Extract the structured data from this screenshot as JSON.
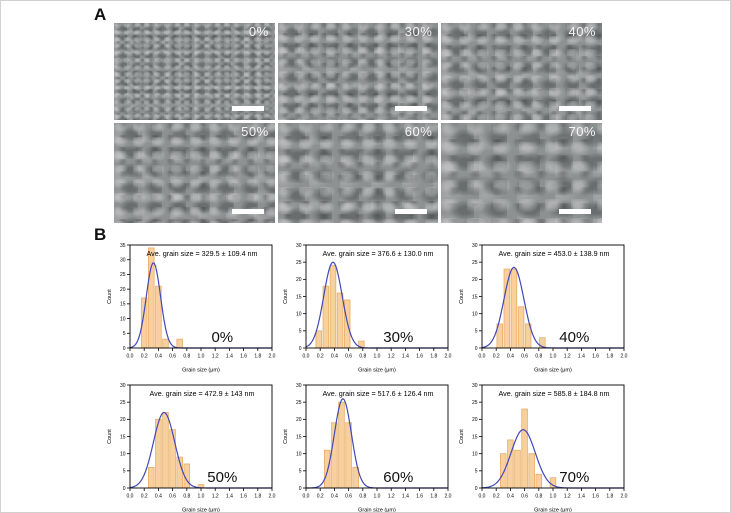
{
  "figure": {
    "panel_a_label": "A",
    "panel_b_label": "B"
  },
  "panel_a": {
    "micrographs": [
      {
        "label": "0%"
      },
      {
        "label": "30%"
      },
      {
        "label": "40%"
      },
      {
        "label": "50%"
      },
      {
        "label": "60%"
      },
      {
        "label": "70%"
      }
    ],
    "scale_bar_color": "#ffffff",
    "label_color": "#ffffff"
  },
  "colors": {
    "bar_fill": "#f7d09e",
    "bar_edge": "#e8ae67",
    "curve": "#4348b8",
    "axis": "#000000",
    "percent_text": "#111111"
  },
  "chart_data": [
    {
      "type": "bar",
      "title": "Ave. grain size = 329.5 ± 109.4 nm",
      "percent_label": "0%",
      "xlabel": "Grain size (μm)",
      "ylabel": "Count",
      "xlim": [
        0,
        2
      ],
      "ylim": [
        0,
        35
      ],
      "xtick_step": 0.2,
      "ytick_step": 5,
      "bar_width": 0.08,
      "bars": [
        {
          "x": 0.2,
          "count": 17
        },
        {
          "x": 0.3,
          "count": 34
        },
        {
          "x": 0.4,
          "count": 21
        },
        {
          "x": 0.5,
          "count": 3
        },
        {
          "x": 0.7,
          "count": 3
        }
      ],
      "gauss": {
        "mu": 0.33,
        "sigma": 0.1,
        "amp": 29
      }
    },
    {
      "type": "bar",
      "title": "Ave. grain size = 376.6 ± 130.0 nm",
      "percent_label": "30%",
      "xlabel": "Grain size (μm)",
      "ylabel": "Count",
      "xlim": [
        0,
        2
      ],
      "ylim": [
        0,
        30
      ],
      "xtick_step": 0.2,
      "ytick_step": 5,
      "bar_width": 0.08,
      "bars": [
        {
          "x": 0.18,
          "count": 5
        },
        {
          "x": 0.28,
          "count": 18
        },
        {
          "x": 0.38,
          "count": 24
        },
        {
          "x": 0.48,
          "count": 16
        },
        {
          "x": 0.58,
          "count": 14
        },
        {
          "x": 0.78,
          "count": 2
        }
      ],
      "gauss": {
        "mu": 0.38,
        "sigma": 0.13,
        "amp": 25
      }
    },
    {
      "type": "bar",
      "title": "Ave. grain size = 453.0 ± 138.9 nm",
      "percent_label": "40%",
      "xlabel": "Grain size (μm)",
      "ylabel": "Count",
      "xlim": [
        0,
        2
      ],
      "ylim": [
        0,
        30
      ],
      "xtick_step": 0.2,
      "ytick_step": 5,
      "bar_width": 0.08,
      "bars": [
        {
          "x": 0.25,
          "count": 7
        },
        {
          "x": 0.35,
          "count": 23
        },
        {
          "x": 0.45,
          "count": 23
        },
        {
          "x": 0.55,
          "count": 12
        },
        {
          "x": 0.65,
          "count": 7
        },
        {
          "x": 0.85,
          "count": 3
        }
      ],
      "gauss": {
        "mu": 0.45,
        "sigma": 0.14,
        "amp": 23.5
      }
    },
    {
      "type": "bar",
      "title": "Ave. grain size = 472.9 ± 143 nm",
      "percent_label": "50%",
      "xlabel": "Grain size (μm)",
      "ylabel": "Count",
      "xlim": [
        0,
        2
      ],
      "ylim": [
        0,
        30
      ],
      "xtick_step": 0.2,
      "ytick_step": 5,
      "bar_width": 0.08,
      "bars": [
        {
          "x": 0.3,
          "count": 6
        },
        {
          "x": 0.4,
          "count": 20
        },
        {
          "x": 0.5,
          "count": 22
        },
        {
          "x": 0.6,
          "count": 17
        },
        {
          "x": 0.7,
          "count": 9
        },
        {
          "x": 0.8,
          "count": 7
        },
        {
          "x": 1.0,
          "count": 1
        }
      ],
      "gauss": {
        "mu": 0.48,
        "sigma": 0.15,
        "amp": 22
      }
    },
    {
      "type": "bar",
      "title": "Ave. grain size = 517.6 ± 126.4 nm",
      "percent_label": "60%",
      "xlabel": "Grain size (μm)",
      "ylabel": "Count",
      "xlim": [
        0,
        2
      ],
      "ylim": [
        0,
        30
      ],
      "xtick_step": 0.2,
      "ytick_step": 5,
      "bar_width": 0.08,
      "bars": [
        {
          "x": 0.3,
          "count": 11
        },
        {
          "x": 0.4,
          "count": 19
        },
        {
          "x": 0.5,
          "count": 25
        },
        {
          "x": 0.6,
          "count": 19
        },
        {
          "x": 0.7,
          "count": 6
        }
      ],
      "gauss": {
        "mu": 0.52,
        "sigma": 0.12,
        "amp": 26
      }
    },
    {
      "type": "bar",
      "title": "Ave. grain size = 585.8 ± 184.8 nm",
      "percent_label": "70%",
      "xlabel": "Grain size (μm)",
      "ylabel": "Count",
      "xlim": [
        0,
        2
      ],
      "ylim": [
        0,
        30
      ],
      "xtick_step": 0.2,
      "ytick_step": 5,
      "bar_width": 0.08,
      "bars": [
        {
          "x": 0.3,
          "count": 10
        },
        {
          "x": 0.4,
          "count": 14
        },
        {
          "x": 0.5,
          "count": 11
        },
        {
          "x": 0.6,
          "count": 23
        },
        {
          "x": 0.7,
          "count": 10
        },
        {
          "x": 0.8,
          "count": 4
        },
        {
          "x": 1.0,
          "count": 3
        }
      ],
      "gauss": {
        "mu": 0.58,
        "sigma": 0.17,
        "amp": 17
      }
    }
  ]
}
